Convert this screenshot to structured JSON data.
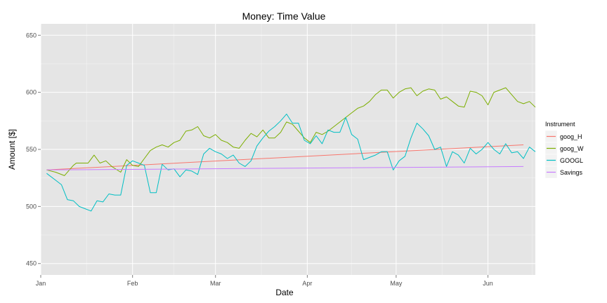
{
  "chart_data": {
    "type": "line",
    "title": "Money:  Time Value",
    "xlabel": "Date",
    "ylabel": "Amount [$]",
    "x_range": [
      "2014-01-01",
      "2014-06-17"
    ],
    "ylim": [
      440,
      660
    ],
    "yticks": [
      450,
      500,
      550,
      600,
      650
    ],
    "xticks": [
      {
        "date": "2014-01-01",
        "label": "Jan"
      },
      {
        "date": "2014-02-01",
        "label": "Feb"
      },
      {
        "date": "2014-03-01",
        "label": "Mar"
      },
      {
        "date": "2014-04-01",
        "label": "Apr"
      },
      {
        "date": "2014-05-01",
        "label": "May"
      },
      {
        "date": "2014-06-01",
        "label": "Jun"
      }
    ],
    "grid": true,
    "background": "#e5e5e5",
    "legend": {
      "title": "Instrument",
      "position": "right",
      "entries": [
        "goog_H",
        "goog_W",
        "GOOGL",
        "Savings"
      ]
    },
    "series": [
      {
        "name": "goog_H",
        "color": "#f8766d",
        "points": [
          [
            "2014-01-03",
            532
          ],
          [
            "2014-06-13",
            554
          ]
        ]
      },
      {
        "name": "goog_W",
        "color": "#7cae00",
        "points": [
          [
            "2014-01-03",
            532
          ],
          [
            "2014-01-06",
            530
          ],
          [
            "2014-01-09",
            527
          ],
          [
            "2014-01-12",
            536
          ],
          [
            "2014-01-13",
            538
          ],
          [
            "2014-01-15",
            538
          ],
          [
            "2014-01-17",
            538
          ],
          [
            "2014-01-19",
            545
          ],
          [
            "2014-01-21",
            538
          ],
          [
            "2014-01-23",
            540
          ],
          [
            "2014-01-25",
            535
          ],
          [
            "2014-01-28",
            530
          ],
          [
            "2014-01-30",
            541
          ],
          [
            "2014-02-01",
            536
          ],
          [
            "2014-02-03",
            535
          ],
          [
            "2014-02-05",
            542
          ],
          [
            "2014-02-07",
            549
          ],
          [
            "2014-02-09",
            552
          ],
          [
            "2014-02-11",
            554
          ],
          [
            "2014-02-13",
            552
          ],
          [
            "2014-02-15",
            556
          ],
          [
            "2014-02-17",
            558
          ],
          [
            "2014-02-19",
            566
          ],
          [
            "2014-02-21",
            567
          ],
          [
            "2014-02-23",
            570
          ],
          [
            "2014-02-25",
            562
          ],
          [
            "2014-02-27",
            560
          ],
          [
            "2014-03-01",
            563
          ],
          [
            "2014-03-03",
            558
          ],
          [
            "2014-03-05",
            556
          ],
          [
            "2014-03-07",
            552
          ],
          [
            "2014-03-09",
            551
          ],
          [
            "2014-03-11",
            558
          ],
          [
            "2014-03-13",
            564
          ],
          [
            "2014-03-15",
            561
          ],
          [
            "2014-03-17",
            567
          ],
          [
            "2014-03-19",
            560
          ],
          [
            "2014-03-21",
            560
          ],
          [
            "2014-03-23",
            565
          ],
          [
            "2014-03-25",
            574
          ],
          [
            "2014-03-27",
            572
          ],
          [
            "2014-03-29",
            566
          ],
          [
            "2014-03-31",
            560
          ],
          [
            "2014-04-02",
            556
          ],
          [
            "2014-04-04",
            565
          ],
          [
            "2014-04-06",
            563
          ],
          [
            "2014-04-08",
            566
          ],
          [
            "2014-04-10",
            570
          ],
          [
            "2014-04-12",
            574
          ],
          [
            "2014-04-14",
            578
          ],
          [
            "2014-04-16",
            582
          ],
          [
            "2014-04-18",
            586
          ],
          [
            "2014-04-20",
            588
          ],
          [
            "2014-04-22",
            592
          ],
          [
            "2014-04-24",
            598
          ],
          [
            "2014-04-26",
            602
          ],
          [
            "2014-04-28",
            602
          ],
          [
            "2014-04-30",
            595
          ],
          [
            "2014-05-02",
            600
          ],
          [
            "2014-05-04",
            603
          ],
          [
            "2014-05-06",
            604
          ],
          [
            "2014-05-08",
            597
          ],
          [
            "2014-05-10",
            601
          ],
          [
            "2014-05-12",
            603
          ],
          [
            "2014-05-14",
            602
          ],
          [
            "2014-05-16",
            594
          ],
          [
            "2014-05-18",
            596
          ],
          [
            "2014-05-20",
            592
          ],
          [
            "2014-05-22",
            588
          ],
          [
            "2014-05-24",
            587
          ],
          [
            "2014-05-26",
            601
          ],
          [
            "2014-05-28",
            600
          ],
          [
            "2014-05-30",
            597
          ],
          [
            "2014-06-01",
            589
          ],
          [
            "2014-06-03",
            600
          ],
          [
            "2014-06-05",
            602
          ],
          [
            "2014-06-07",
            604
          ],
          [
            "2014-06-09",
            598
          ],
          [
            "2014-06-11",
            592
          ],
          [
            "2014-06-13",
            590
          ],
          [
            "2014-06-15",
            592
          ],
          [
            "2014-06-17",
            587
          ]
        ]
      },
      {
        "name": "GOOGL",
        "color": "#00bfc4",
        "points": [
          [
            "2014-01-03",
            529
          ],
          [
            "2014-01-06",
            523
          ],
          [
            "2014-01-08",
            519
          ],
          [
            "2014-01-10",
            506
          ],
          [
            "2014-01-12",
            505
          ],
          [
            "2014-01-14",
            500
          ],
          [
            "2014-01-16",
            498
          ],
          [
            "2014-01-18",
            496
          ],
          [
            "2014-01-20",
            505
          ],
          [
            "2014-01-22",
            504
          ],
          [
            "2014-01-24",
            511
          ],
          [
            "2014-01-26",
            510
          ],
          [
            "2014-01-28",
            510
          ],
          [
            "2014-01-30",
            536
          ],
          [
            "2014-02-01",
            540
          ],
          [
            "2014-02-03",
            538
          ],
          [
            "2014-02-05",
            536
          ],
          [
            "2014-02-07",
            512
          ],
          [
            "2014-02-09",
            512
          ],
          [
            "2014-02-11",
            537
          ],
          [
            "2014-02-13",
            532
          ],
          [
            "2014-02-15",
            533
          ],
          [
            "2014-02-17",
            526
          ],
          [
            "2014-02-19",
            532
          ],
          [
            "2014-02-21",
            531
          ],
          [
            "2014-02-23",
            528
          ],
          [
            "2014-02-25",
            546
          ],
          [
            "2014-02-27",
            551
          ],
          [
            "2014-03-01",
            548
          ],
          [
            "2014-03-03",
            546
          ],
          [
            "2014-03-05",
            542
          ],
          [
            "2014-03-07",
            545
          ],
          [
            "2014-03-09",
            538
          ],
          [
            "2014-03-11",
            535
          ],
          [
            "2014-03-13",
            540
          ],
          [
            "2014-03-15",
            553
          ],
          [
            "2014-03-17",
            560
          ],
          [
            "2014-03-19",
            566
          ],
          [
            "2014-03-21",
            570
          ],
          [
            "2014-03-23",
            575
          ],
          [
            "2014-03-25",
            581
          ],
          [
            "2014-03-27",
            573
          ],
          [
            "2014-03-29",
            573
          ],
          [
            "2014-03-31",
            558
          ],
          [
            "2014-04-02",
            555
          ],
          [
            "2014-04-04",
            562
          ],
          [
            "2014-04-06",
            555
          ],
          [
            "2014-04-08",
            567
          ],
          [
            "2014-04-10",
            565
          ],
          [
            "2014-04-12",
            565
          ],
          [
            "2014-04-14",
            578
          ],
          [
            "2014-04-16",
            563
          ],
          [
            "2014-04-18",
            559
          ],
          [
            "2014-04-20",
            541
          ],
          [
            "2014-04-22",
            543
          ],
          [
            "2014-04-24",
            545
          ],
          [
            "2014-04-26",
            548
          ],
          [
            "2014-04-28",
            548
          ],
          [
            "2014-04-30",
            532
          ],
          [
            "2014-05-02",
            540
          ],
          [
            "2014-05-04",
            544
          ],
          [
            "2014-05-06",
            560
          ],
          [
            "2014-05-08",
            573
          ],
          [
            "2014-05-10",
            568
          ],
          [
            "2014-05-12",
            562
          ],
          [
            "2014-05-14",
            550
          ],
          [
            "2014-05-16",
            552
          ],
          [
            "2014-05-18",
            535
          ],
          [
            "2014-05-20",
            548
          ],
          [
            "2014-05-22",
            545
          ],
          [
            "2014-05-24",
            538
          ],
          [
            "2014-05-26",
            551
          ],
          [
            "2014-05-28",
            546
          ],
          [
            "2014-05-30",
            550
          ],
          [
            "2014-06-01",
            556
          ],
          [
            "2014-06-03",
            550
          ],
          [
            "2014-06-05",
            546
          ],
          [
            "2014-06-07",
            555
          ],
          [
            "2014-06-09",
            547
          ],
          [
            "2014-06-11",
            548
          ],
          [
            "2014-06-13",
            542
          ],
          [
            "2014-06-15",
            552
          ],
          [
            "2014-06-17",
            548
          ]
        ]
      },
      {
        "name": "Savings",
        "color": "#c77cff",
        "points": [
          [
            "2014-01-03",
            532
          ],
          [
            "2014-06-13",
            535
          ]
        ]
      }
    ]
  }
}
